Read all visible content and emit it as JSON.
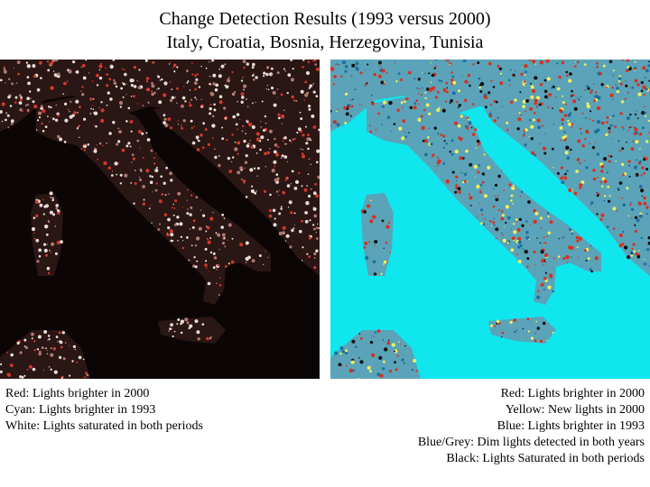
{
  "title": {
    "line1": "Change Detection Results (1993 versus 2000)",
    "line2": "Italy, Croatia, Bosnia, Herzegovina, Tunisia"
  },
  "panels": {
    "left": {
      "colors": {
        "background": "#0b0605",
        "land": "#2a1614",
        "lights": "#e8dcd8",
        "red": "#d23a2a",
        "borders": "#2fbf3a"
      },
      "legend": [
        "Red: Lights brighter in 2000",
        "Cyan: Lights brighter in 1993",
        "White: Lights saturated in both periods"
      ]
    },
    "right": {
      "colors": {
        "background": "#10e6ee",
        "land": "#5aa3b8",
        "red": "#d8301e",
        "yellow": "#f3ef5a",
        "black": "#111111"
      },
      "legend": [
        "Red: Lights brighter in 2000",
        "Yellow: New lights in 2000",
        "Blue: Lights brighter in 1993",
        "Blue/Grey: Dim lights detected in both years",
        "Black: Lights Saturated in both periods"
      ]
    }
  }
}
